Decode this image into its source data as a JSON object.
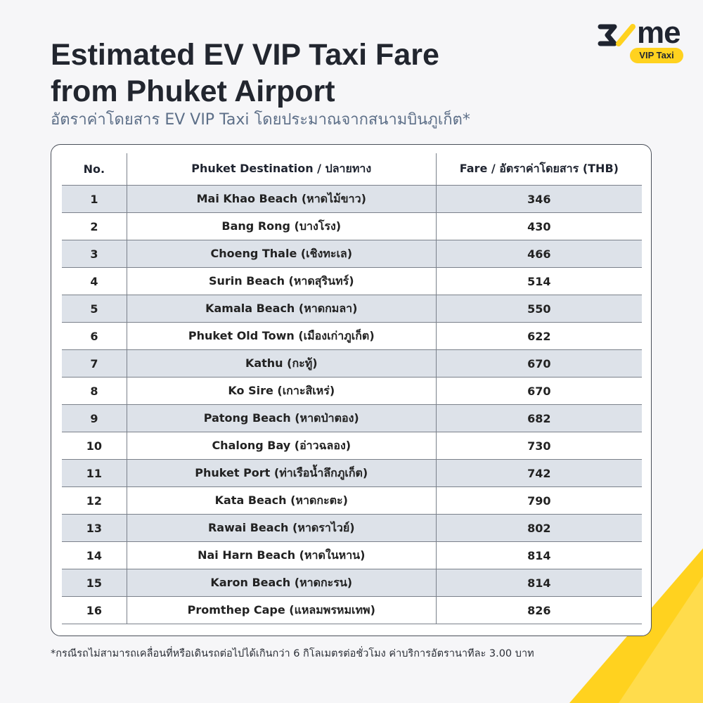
{
  "brand": {
    "logo_text": "me",
    "badge": "VIP Taxi",
    "accent_color": "#ffd21f"
  },
  "title_line1": "Estimated EV VIP Taxi Fare",
  "title_line2": "from Phuket Airport",
  "subtitle": "อัตราค่าโดยสาร EV VIP Taxi โดยประมาณจากสนามบินภูเก็ต*",
  "table": {
    "headers": {
      "no": "No.",
      "destination": "Phuket Destination / ปลายทาง",
      "fare": "Fare / อัตราค่าโดยสาร (THB)"
    },
    "rows": [
      {
        "no": "1",
        "destination": "Mai Khao Beach (หาดไม้ขาว)",
        "fare": "346"
      },
      {
        "no": "2",
        "destination": "Bang Rong (บางโรง)",
        "fare": "430"
      },
      {
        "no": "3",
        "destination": "Choeng Thale (เชิงทะเล)",
        "fare": "466"
      },
      {
        "no": "4",
        "destination": "Surin Beach (หาดสุรินทร์)",
        "fare": "514"
      },
      {
        "no": "5",
        "destination": "Kamala Beach (หาดกมลา)",
        "fare": "550"
      },
      {
        "no": "6",
        "destination": "Phuket Old Town (เมืองเก่าภูเก็ต)",
        "fare": "622"
      },
      {
        "no": "7",
        "destination": "Kathu (กะทู้)",
        "fare": "670"
      },
      {
        "no": "8",
        "destination": "Ko Sire (เกาะสิเหร่)",
        "fare": "670"
      },
      {
        "no": "9",
        "destination": "Patong Beach (หาดป่าตอง)",
        "fare": "682"
      },
      {
        "no": "10",
        "destination": "Chalong Bay (อ่าวฉลอง)",
        "fare": "730"
      },
      {
        "no": "11",
        "destination": "Phuket Port (ท่าเรือน้ำลึกภูเก็ต)",
        "fare": "742"
      },
      {
        "no": "12",
        "destination": "Kata Beach (หาดกะตะ)",
        "fare": "790"
      },
      {
        "no": "13",
        "destination": "Rawai Beach (หาดราไวย์)",
        "fare": "802"
      },
      {
        "no": "14",
        "destination": "Nai Harn Beach (หาดในหาน)",
        "fare": "814"
      },
      {
        "no": "15",
        "destination": "Karon Beach (หาดกะรน)",
        "fare": "814"
      },
      {
        "no": "16",
        "destination": "Promthep Cape (แหลมพรหมเทพ)",
        "fare": "826"
      }
    ]
  },
  "footnote": "*กรณีรถไม่สามารถเคลื่อนที่หรือเดินรถต่อไปได้เกินกว่า 6 กิโลเมตรต่อชั่วโมง ค่าบริการอัตรานาทีละ 3.00 บาท"
}
